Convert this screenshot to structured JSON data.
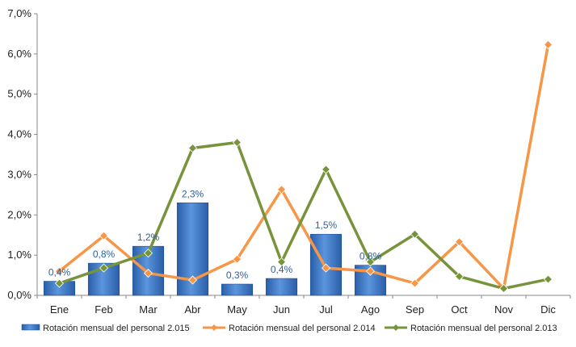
{
  "chart_data": {
    "type": "bar",
    "categories": [
      "Ene",
      "Feb",
      "Mar",
      "Abr",
      "May",
      "Jun",
      "Jul",
      "Ago",
      "Sep",
      "Oct",
      "Nov",
      "Dic"
    ],
    "ylim": [
      0,
      7
    ],
    "yticks": [
      "0,0%",
      "1,0%",
      "2,0%",
      "3,0%",
      "4,0%",
      "5,0%",
      "6,0%",
      "7,0%"
    ],
    "grid": false,
    "legend_position": "bottom",
    "series": [
      {
        "name": "Rotación mensual del personal 2.015",
        "type": "bar",
        "color": "#3b78c8",
        "values": [
          0.35,
          0.8,
          1.22,
          2.3,
          0.28,
          0.42,
          1.52,
          0.75,
          null,
          null,
          null,
          null
        ],
        "labels": [
          "0,4%",
          "0,8%",
          "1,2%",
          "2,3%",
          "0,3%",
          "0,4%",
          "1,5%",
          "0,8%",
          null,
          null,
          null,
          null
        ]
      },
      {
        "name": "Rotación mensual del personal 2.014",
        "type": "line",
        "color": "#f79646",
        "values": [
          0.6,
          1.48,
          0.55,
          0.38,
          0.9,
          2.63,
          0.68,
          0.6,
          0.3,
          1.33,
          0.17,
          6.23
        ]
      },
      {
        "name": "Rotación mensual del personal 2.013",
        "type": "line",
        "color": "#77933c",
        "values": [
          0.3,
          0.68,
          1.05,
          3.66,
          3.8,
          0.83,
          3.13,
          0.83,
          1.52,
          0.47,
          0.17,
          0.4
        ]
      }
    ]
  }
}
